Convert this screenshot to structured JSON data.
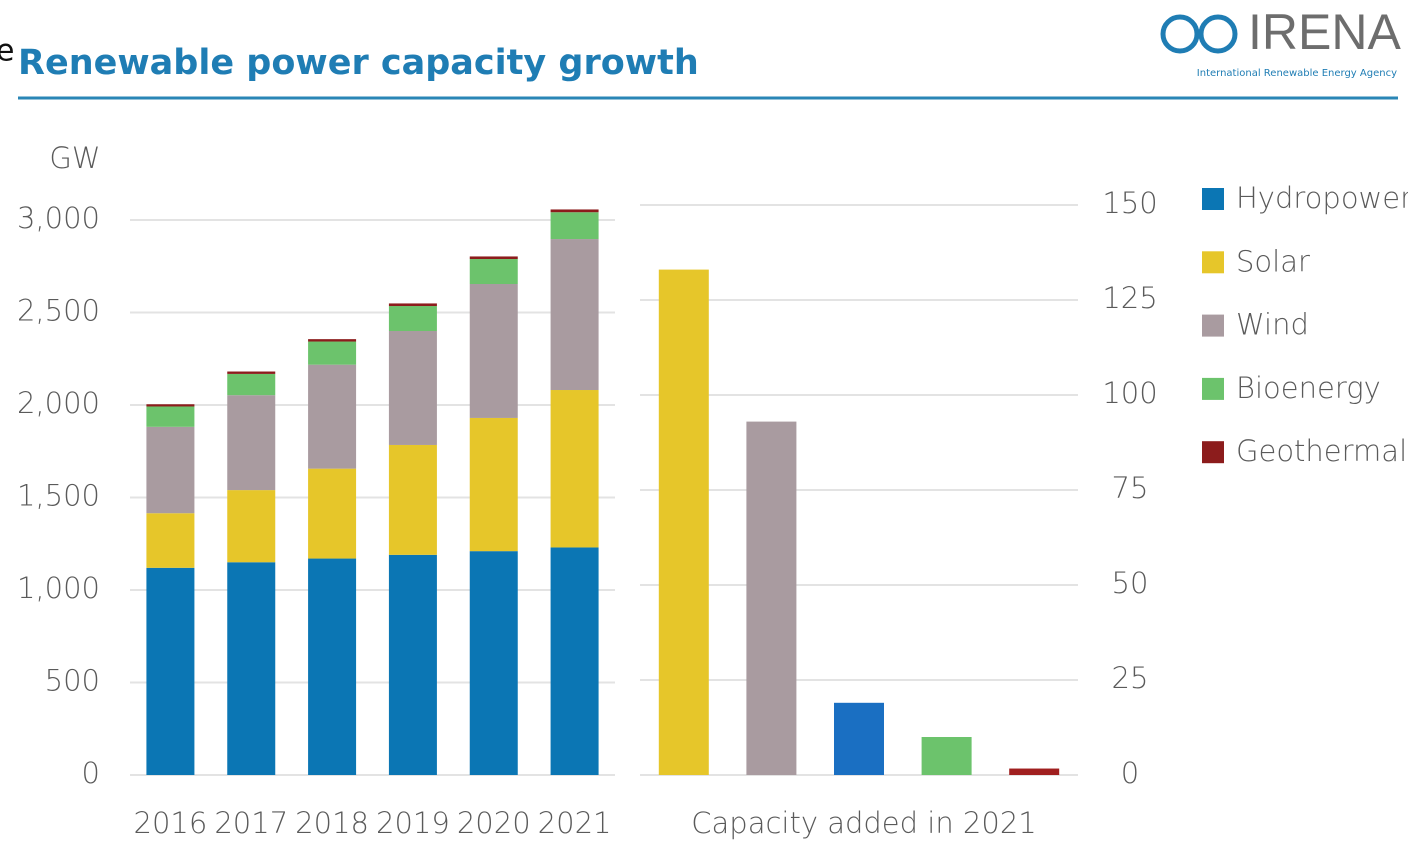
{
  "header": {
    "fragment": "e",
    "title": "Renewable power capacity growth",
    "logo": "IRENA",
    "agency": "International Renewable Energy Agency"
  },
  "chart_data": [
    {
      "type": "bar",
      "stacked": true,
      "y_label": "GW",
      "categories": [
        "2016",
        "2017",
        "2018",
        "2019",
        "2020",
        "2021"
      ],
      "series": [
        {
          "name": "Hydropower",
          "color": "#0b76b4",
          "values": [
            1120,
            1150,
            1170,
            1190,
            1210,
            1230
          ]
        },
        {
          "name": "Solar",
          "color": "#e6c62a",
          "values": [
            295,
            390,
            486,
            594,
            720,
            851
          ]
        },
        {
          "name": "Wind",
          "color": "#a99ba0",
          "values": [
            467,
            513,
            562,
            616,
            724,
            816
          ]
        },
        {
          "name": "Bioenergy",
          "color": "#6cc36c",
          "values": [
            110,
            115,
            125,
            135,
            135,
            145
          ]
        },
        {
          "name": "Geothermal",
          "color": "#8c1c1c",
          "values": [
            12,
            13,
            13,
            14,
            14,
            15
          ]
        }
      ],
      "ylim": [
        0,
        3000
      ],
      "yticks": [
        0,
        500,
        {
          "value": 1000,
          "label": "1,000"
        },
        {
          "value": 1500,
          "label": "1,500"
        },
        {
          "value": 2000,
          "label": "2,000"
        },
        {
          "value": 2500,
          "label": "2,500"
        },
        {
          "value": 3000,
          "label": "3,000"
        }
      ],
      "grid": true,
      "legend": "right"
    },
    {
      "type": "bar",
      "x_label": "Capacity added in 2021",
      "categories": [
        null,
        null,
        null,
        null,
        null
      ],
      "values": [
        133,
        93,
        19,
        10,
        1.7
      ],
      "colors": [
        "#e6c62a",
        "#a99ba0",
        "#1a6fc2",
        "#6cc36c",
        "#a01f1f"
      ],
      "ylim": [
        0,
        150
      ],
      "yticks": [
        0,
        25,
        50,
        75,
        100,
        125,
        150
      ],
      "grid": true,
      "axis_side": "right"
    }
  ]
}
